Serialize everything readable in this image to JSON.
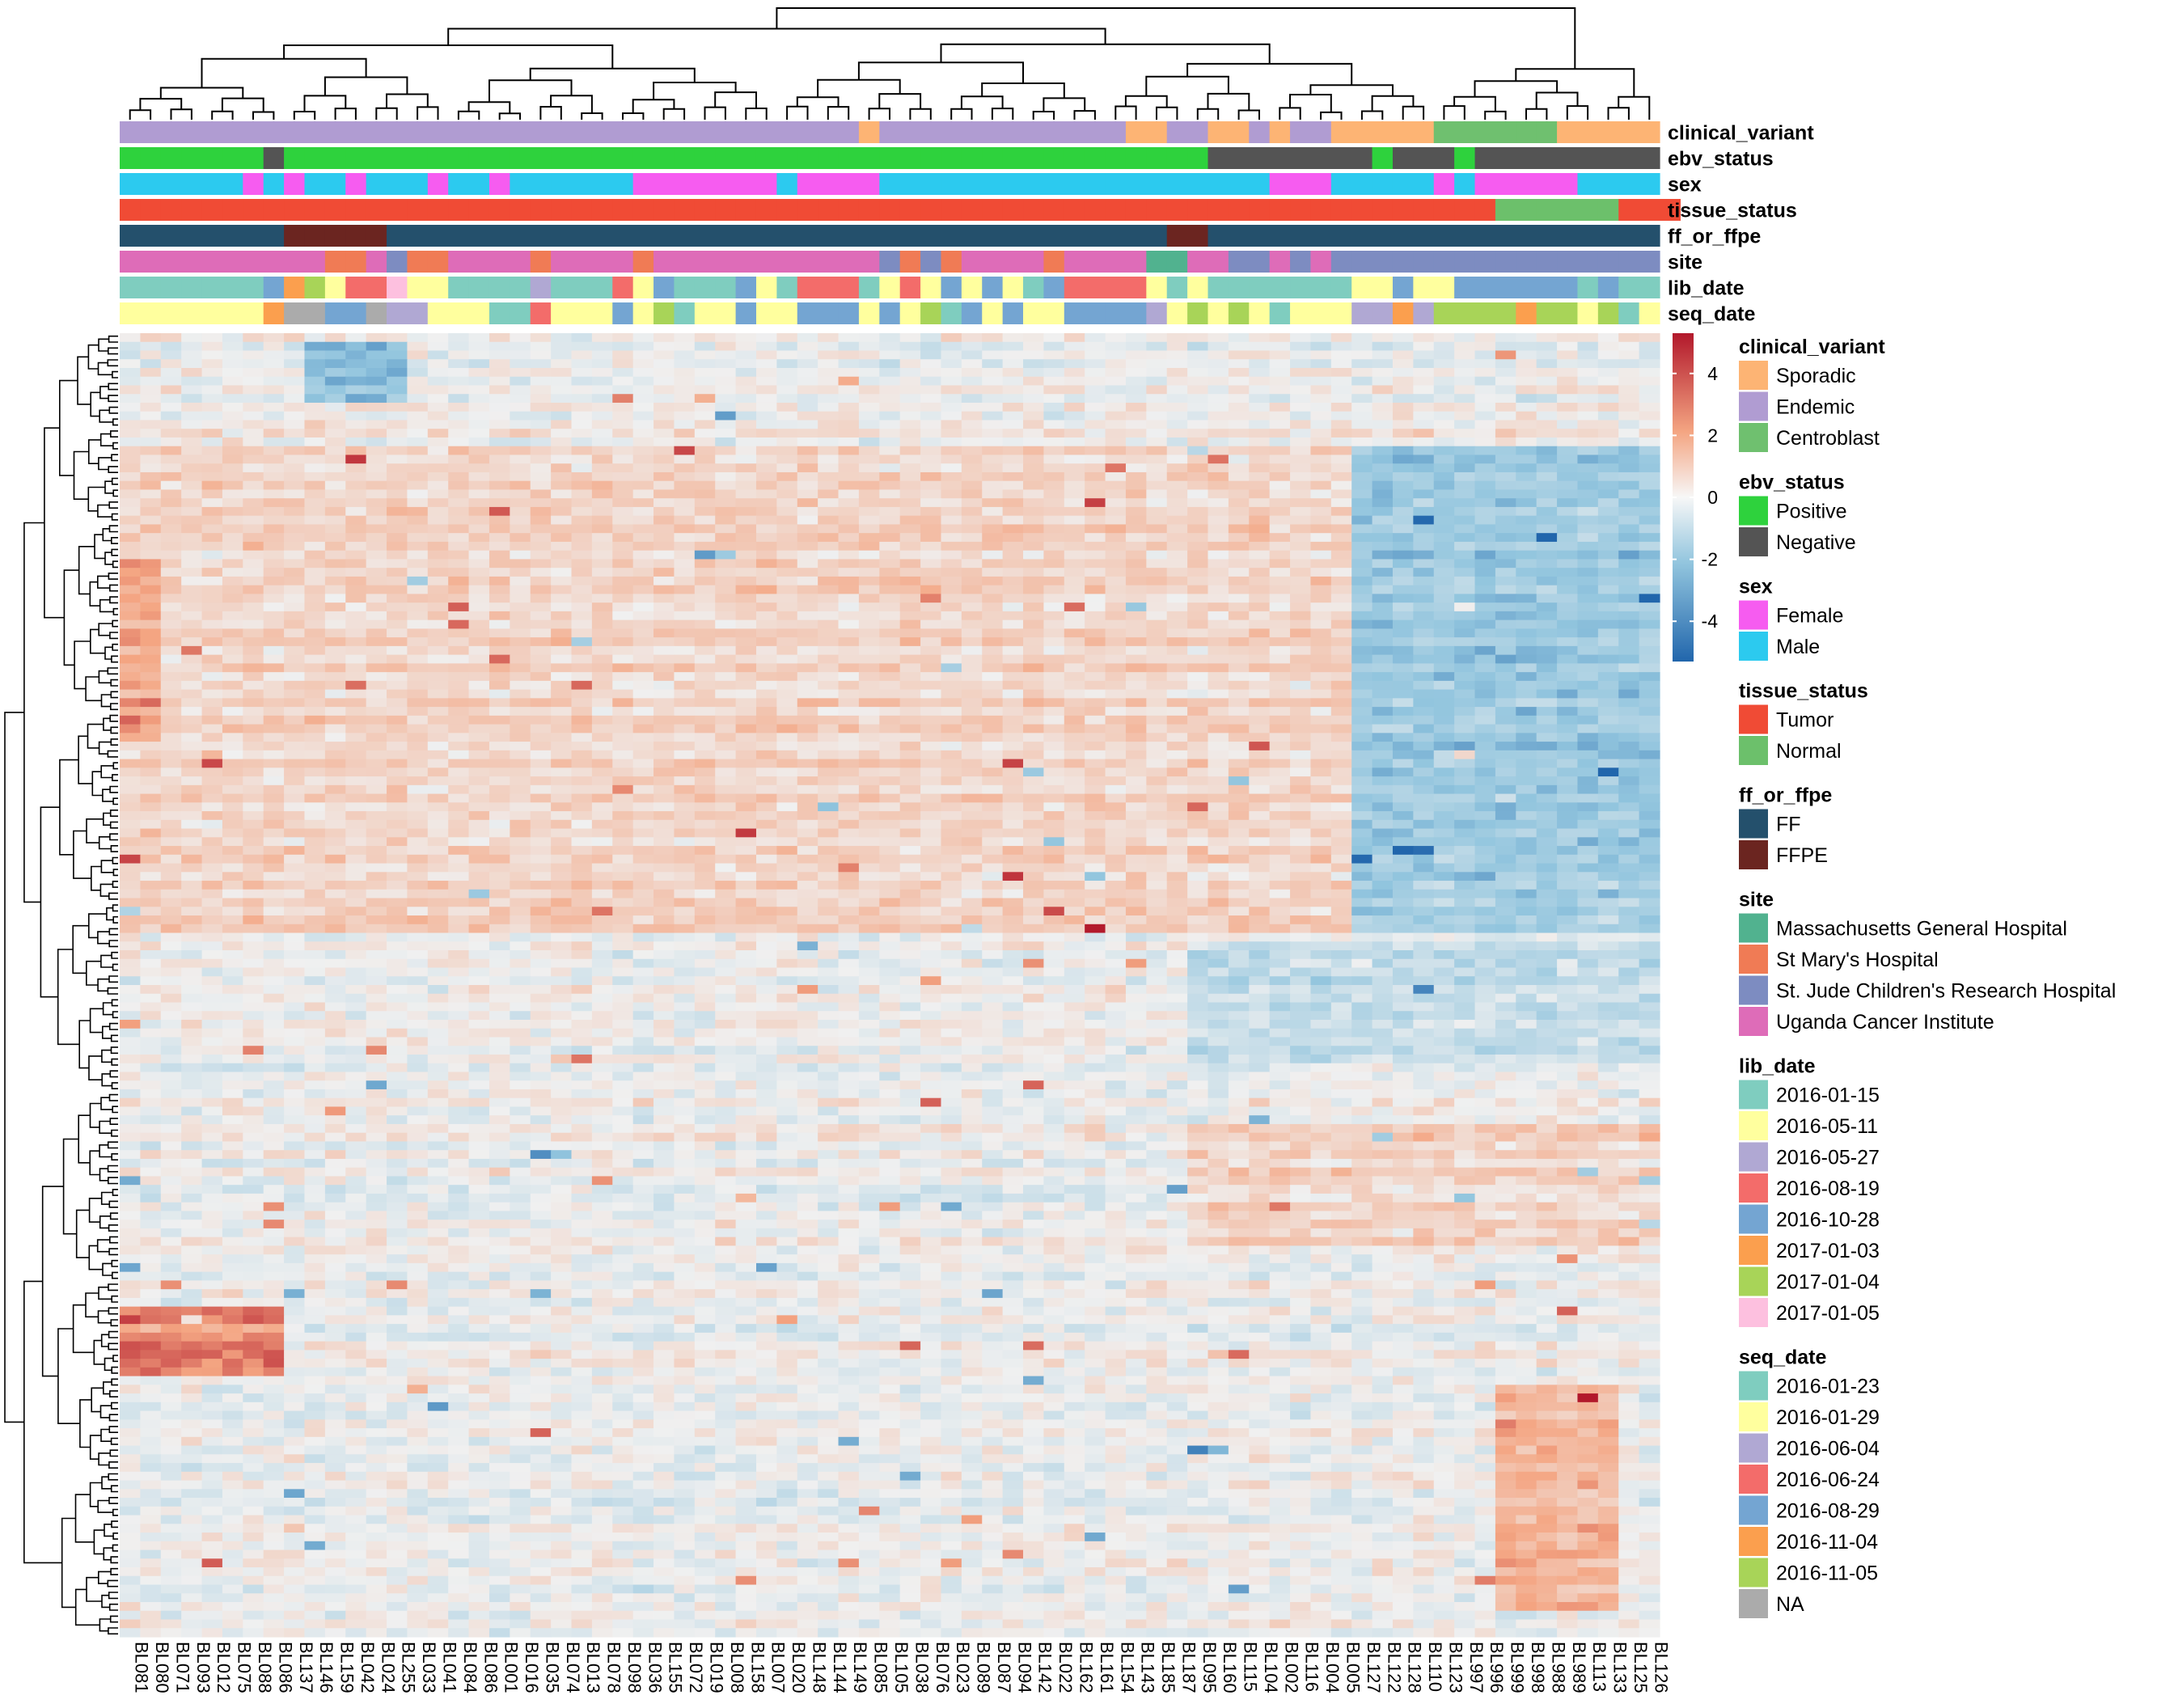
{
  "chart_data": {
    "type": "heatmap",
    "colorbar": {
      "ticks": [
        4,
        2,
        0,
        -2,
        -4
      ],
      "colors": {
        "high": "#b2182b",
        "mid": "#f7f7f7",
        "low": "#2166ac"
      }
    },
    "samples": [
      "BL081",
      "BL080",
      "BL071",
      "BL093",
      "BL012",
      "BL075",
      "BL088",
      "BL086",
      "BL137",
      "BL146",
      "BL159",
      "BL042",
      "BL024",
      "BL255",
      "BL033",
      "BL041",
      "BL084",
      "BL086",
      "BL001",
      "BL016",
      "BL035",
      "BL074",
      "BL013",
      "BL078",
      "BL098",
      "BL036",
      "BL155",
      "BL072",
      "BL019",
      "BL008",
      "BL158",
      "BL007",
      "BL020",
      "BL148",
      "BL144",
      "BL149",
      "BL085",
      "BL105",
      "BL038",
      "BL076",
      "BL023",
      "BL089",
      "BL087",
      "BL094",
      "BL142",
      "BL022",
      "BL162",
      "BL161",
      "BL154",
      "BL143",
      "BL185",
      "BL187",
      "BL095",
      "BL160",
      "BL115",
      "BL104",
      "BL002",
      "BL116",
      "BL004",
      "BL005",
      "BL127",
      "BL122",
      "BL128",
      "BL110",
      "BL123",
      "BL997",
      "BL996",
      "BL999",
      "BL998",
      "BL988",
      "BL989",
      "BL113",
      "BL133",
      "BL125",
      "BL126"
    ],
    "annotation_tracks": [
      {
        "name": "clinical_variant",
        "values": [
          "E",
          "E",
          "E",
          "E",
          "E",
          "E",
          "E",
          "E",
          "E",
          "E",
          "E",
          "E",
          "E",
          "E",
          "E",
          "E",
          "E",
          "E",
          "E",
          "E",
          "E",
          "E",
          "E",
          "E",
          "E",
          "E",
          "E",
          "E",
          "E",
          "E",
          "E",
          "E",
          "E",
          "E",
          "E",
          "E",
          "S",
          "E",
          "E",
          "E",
          "E",
          "E",
          "E",
          "E",
          "E",
          "E",
          "E",
          "E",
          "E",
          "S",
          "S",
          "E",
          "E",
          "S",
          "S",
          "E",
          "S",
          "E",
          "E",
          "S",
          "S",
          "S",
          "S",
          "S",
          "C",
          "C",
          "C",
          "C",
          "C",
          "C",
          "S",
          "S",
          "S",
          "S",
          "S"
        ]
      },
      {
        "name": "ebv_status",
        "values": [
          "P",
          "P",
          "P",
          "P",
          "P",
          "P",
          "P",
          "N",
          "P",
          "P",
          "P",
          "P",
          "P",
          "P",
          "P",
          "P",
          "P",
          "P",
          "P",
          "P",
          "P",
          "P",
          "P",
          "P",
          "P",
          "P",
          "P",
          "P",
          "P",
          "P",
          "P",
          "P",
          "P",
          "P",
          "P",
          "P",
          "P",
          "P",
          "P",
          "P",
          "P",
          "P",
          "P",
          "P",
          "P",
          "P",
          "P",
          "P",
          "P",
          "P",
          "P",
          "P",
          "P",
          "N",
          "N",
          "N",
          "N",
          "N",
          "N",
          "N",
          "N",
          "P",
          "N",
          "N",
          "N",
          "P",
          "N",
          "N",
          "N",
          "N",
          "N",
          "N",
          "N",
          "N",
          "N"
        ]
      },
      {
        "name": "sex",
        "values": [
          "M",
          "M",
          "M",
          "M",
          "M",
          "M",
          "F",
          "M",
          "F",
          "M",
          "M",
          "F",
          "M",
          "M",
          "M",
          "F",
          "M",
          "M",
          "F",
          "M",
          "M",
          "M",
          "M",
          "M",
          "M",
          "F",
          "F",
          "F",
          "F",
          "F",
          "F",
          "F",
          "M",
          "F",
          "F",
          "F",
          "F",
          "M",
          "M",
          "M",
          "M",
          "M",
          "M",
          "M",
          "M",
          "M",
          "M",
          "M",
          "M",
          "M",
          "M",
          "M",
          "M",
          "M",
          "M",
          "M",
          "F",
          "F",
          "F",
          "M",
          "M",
          "M",
          "M",
          "M",
          "F",
          "M",
          "F",
          "F",
          "F",
          "F",
          "F",
          "M",
          "M",
          "M",
          "M"
        ]
      },
      {
        "name": "tissue_status",
        "values": [
          "T",
          "T",
          "T",
          "T",
          "T",
          "T",
          "T",
          "T",
          "T",
          "T",
          "T",
          "T",
          "T",
          "T",
          "T",
          "T",
          "T",
          "T",
          "T",
          "T",
          "T",
          "T",
          "T",
          "T",
          "T",
          "T",
          "T",
          "T",
          "T",
          "T",
          "T",
          "T",
          "T",
          "T",
          "T",
          "T",
          "T",
          "T",
          "T",
          "T",
          "T",
          "T",
          "T",
          "T",
          "T",
          "T",
          "T",
          "T",
          "T",
          "T",
          "T",
          "T",
          "T",
          "T",
          "T",
          "T",
          "T",
          "T",
          "T",
          "T",
          "T",
          "T",
          "T",
          "T",
          "T",
          "T",
          "T",
          "N",
          "N",
          "N",
          "N",
          "N",
          "N",
          "T",
          "T",
          "T"
        ]
      },
      {
        "name": "ff_or_ffpe",
        "values": [
          "FF",
          "FF",
          "FF",
          "FF",
          "FF",
          "FF",
          "FF",
          "FF",
          "FFPE",
          "FFPE",
          "FFPE",
          "FFPE",
          "FFPE",
          "FF",
          "FF",
          "FF",
          "FF",
          "FF",
          "FF",
          "FF",
          "FF",
          "FF",
          "FF",
          "FF",
          "FF",
          "FF",
          "FF",
          "FF",
          "FF",
          "FF",
          "FF",
          "FF",
          "FF",
          "FF",
          "FF",
          "FF",
          "FF",
          "FF",
          "FF",
          "FF",
          "FF",
          "FF",
          "FF",
          "FF",
          "FF",
          "FF",
          "FF",
          "FF",
          "FF",
          "FF",
          "FF",
          "FFPE",
          "FFPE",
          "FF",
          "FF",
          "FF",
          "FF",
          "FF",
          "FF",
          "FF",
          "FF",
          "FF",
          "FF",
          "FF",
          "FF",
          "FF",
          "FF",
          "FF",
          "FF",
          "FF",
          "FF",
          "FF",
          "FF",
          "FF",
          "FF"
        ]
      },
      {
        "name": "site",
        "values": [
          "U",
          "U",
          "U",
          "U",
          "U",
          "U",
          "U",
          "U",
          "U",
          "U",
          "S",
          "S",
          "U",
          "SJ",
          "S",
          "S",
          "U",
          "U",
          "U",
          "U",
          "S",
          "U",
          "U",
          "U",
          "U",
          "S",
          "U",
          "U",
          "U",
          "U",
          "U",
          "U",
          "U",
          "U",
          "U",
          "U",
          "U",
          "SJ",
          "S",
          "SJ",
          "S",
          "U",
          "U",
          "U",
          "U",
          "S",
          "U",
          "U",
          "U",
          "U",
          "MGH",
          "MGH",
          "U",
          "U",
          "SJ",
          "SJ",
          "U",
          "SJ",
          "U",
          "SJ",
          "SJ",
          "SJ",
          "SJ",
          "SJ",
          "SJ",
          "SJ",
          "SJ",
          "SJ",
          "SJ",
          "SJ",
          "SJ",
          "SJ",
          "SJ",
          "SJ",
          "SJ"
        ]
      },
      {
        "name": "lib_date",
        "values": [
          "d1",
          "d1",
          "d1",
          "d1",
          "d1",
          "d1",
          "d1",
          "d5",
          "d6",
          "d7",
          "d2",
          "d4",
          "d4",
          "d8",
          "d2",
          "d2",
          "d1",
          "d1",
          "d1",
          "d1",
          "d3",
          "d1",
          "d1",
          "d1",
          "d4",
          "d2",
          "d5",
          "d1",
          "d1",
          "d1",
          "d5",
          "d2",
          "d1",
          "d4",
          "d4",
          "d4",
          "d1",
          "d2",
          "d4",
          "d2",
          "d5",
          "d2",
          "d5",
          "d2",
          "d1",
          "d5",
          "d4",
          "d4",
          "d4",
          "d4",
          "d2",
          "d1",
          "d2",
          "d1",
          "d1",
          "d1",
          "d1",
          "d1",
          "d1",
          "d1",
          "d2",
          "d2",
          "d5",
          "d2",
          "d2",
          "d5",
          "d5",
          "d5",
          "d5",
          "d5",
          "d5",
          "d1",
          "d5",
          "d1",
          "d1"
        ]
      },
      {
        "name": "seq_date",
        "values": [
          "s2",
          "s2",
          "s2",
          "s2",
          "s2",
          "s2",
          "s2",
          "s6",
          "s8",
          "s8",
          "s5",
          "s5",
          "s8",
          "s3",
          "s3",
          "s2",
          "s2",
          "s2",
          "s1",
          "s1",
          "s4",
          "s2",
          "s2",
          "s2",
          "s5",
          "s2",
          "s7",
          "s1",
          "s2",
          "s2",
          "s5",
          "s2",
          "s2",
          "s5",
          "s5",
          "s5",
          "s2",
          "s5",
          "s2",
          "s7",
          "s1",
          "s5",
          "s2",
          "s5",
          "s2",
          "s2",
          "s5",
          "s5",
          "s5",
          "s5",
          "s3",
          "s2",
          "s7",
          "s2",
          "s7",
          "s2",
          "s1",
          "s2",
          "s2",
          "s2",
          "s3",
          "s3",
          "s6",
          "s3",
          "s7",
          "s7",
          "s7",
          "s7",
          "s6",
          "s7",
          "s7",
          "s2",
          "s7",
          "s1",
          "s2"
        ]
      }
    ],
    "legends": [
      {
        "title": "clinical_variant",
        "items": [
          {
            "key": "S",
            "label": "Sporadic",
            "color": "#fdb474"
          },
          {
            "key": "E",
            "label": "Endemic",
            "color": "#b09cd2"
          },
          {
            "key": "C",
            "label": "Centroblast",
            "color": "#6fc06f"
          }
        ]
      },
      {
        "title": "ebv_status",
        "items": [
          {
            "key": "P",
            "label": "Positive",
            "color": "#2ed23d"
          },
          {
            "key": "N",
            "label": "Negative",
            "color": "#545454"
          }
        ]
      },
      {
        "title": "sex",
        "items": [
          {
            "key": "F",
            "label": "Female",
            "color": "#f65cf0"
          },
          {
            "key": "M",
            "label": "Male",
            "color": "#2ccaef"
          }
        ]
      },
      {
        "title": "tissue_status",
        "items": [
          {
            "key": "T",
            "label": "Tumor",
            "color": "#f04b35"
          },
          {
            "key": "N",
            "label": "Normal",
            "color": "#6cc06b"
          }
        ]
      },
      {
        "title": "ff_or_ffpe",
        "items": [
          {
            "key": "FF",
            "label": "FF",
            "color": "#24506c"
          },
          {
            "key": "FFPE",
            "label": "FFPE",
            "color": "#6b2520"
          }
        ]
      },
      {
        "title": "site",
        "items": [
          {
            "key": "MGH",
            "label": "Massachusetts General Hospital",
            "color": "#51b28f"
          },
          {
            "key": "S",
            "label": "St Mary's Hospital",
            "color": "#f07b55"
          },
          {
            "key": "SJ",
            "label": "St. Jude Children's Research Hospital",
            "color": "#7d8cc1"
          },
          {
            "key": "U",
            "label": "Uganda Cancer Institute",
            "color": "#de6cb8"
          }
        ]
      },
      {
        "title": "lib_date",
        "items": [
          {
            "key": "d1",
            "label": "2016-01-15",
            "color": "#7fcdbf"
          },
          {
            "key": "d2",
            "label": "2016-05-11",
            "color": "#ffff9e"
          },
          {
            "key": "d3",
            "label": "2016-05-27",
            "color": "#b0a8d3"
          },
          {
            "key": "d4",
            "label": "2016-08-19",
            "color": "#f36c6a"
          },
          {
            "key": "d5",
            "label": "2016-10-28",
            "color": "#74a5d2"
          },
          {
            "key": "d6",
            "label": "2017-01-03",
            "color": "#fb9f4e"
          },
          {
            "key": "d7",
            "label": "2017-01-04",
            "color": "#a8d458"
          },
          {
            "key": "d8",
            "label": "2017-01-05",
            "color": "#fdc0df"
          }
        ]
      },
      {
        "title": "seq_date",
        "items": [
          {
            "key": "s1",
            "label": "2016-01-23",
            "color": "#7fcdbf"
          },
          {
            "key": "s2",
            "label": "2016-01-29",
            "color": "#ffff9e"
          },
          {
            "key": "s3",
            "label": "2016-06-04",
            "color": "#b0a8d3"
          },
          {
            "key": "s4",
            "label": "2016-06-24",
            "color": "#f36c6a"
          },
          {
            "key": "s5",
            "label": "2016-08-29",
            "color": "#74a5d2"
          },
          {
            "key": "s6",
            "label": "2016-11-04",
            "color": "#fb9f4e"
          },
          {
            "key": "s7",
            "label": "2016-11-05",
            "color": "#a8d458"
          },
          {
            "key": "s8",
            "label": "NA",
            "color": "#ababab"
          }
        ]
      }
    ]
  }
}
